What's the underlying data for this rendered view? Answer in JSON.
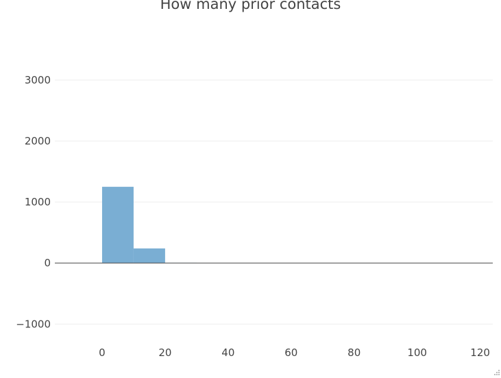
{
  "chart_data": {
    "type": "bar",
    "title": "How many prior contacts",
    "xlabel": "",
    "ylabel": "",
    "xlim": [
      -15,
      124
    ],
    "ylim": [
      -1300,
      3750
    ],
    "x_ticks": [
      0,
      20,
      40,
      60,
      80,
      100,
      120
    ],
    "y_ticks": [
      -1000,
      0,
      1000,
      2000,
      3000
    ],
    "y_tick_labels": [
      "−1000",
      "0",
      "1000",
      "2000",
      "3000"
    ],
    "bin_width": 10,
    "bins": [
      {
        "x0": 0,
        "x1": 10,
        "count": 1250
      },
      {
        "x0": 10,
        "x1": 20,
        "count": 240
      },
      {
        "x0": 20,
        "x1": 30,
        "count": 4
      }
    ],
    "grid": true,
    "legend": "none",
    "bar_color": "#7aaed3",
    "grid_color": "#eeeeee",
    "zero_line_color": "#444444",
    "text_color": "#444444"
  }
}
